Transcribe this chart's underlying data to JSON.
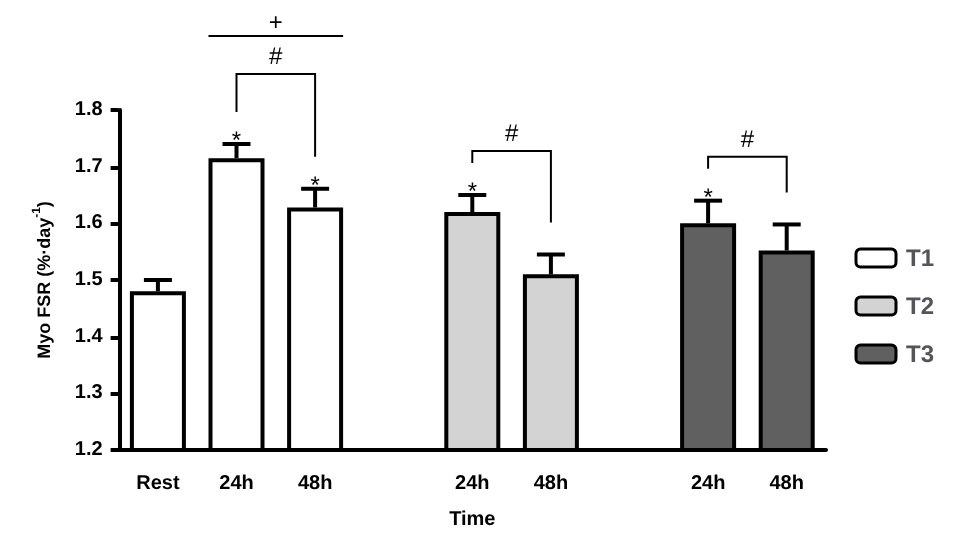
{
  "chart_data": {
    "type": "bar",
    "xlabel": "Time",
    "ylabel": "Myo FSR (%·day$^{-1}$)",
    "categories": [
      "Rest",
      "24h",
      "48h",
      null,
      "24h",
      "48h",
      null,
      "24h",
      "48h"
    ],
    "series": [
      {
        "name": "T1",
        "color": "#ffffff",
        "values": [
          1.48,
          1.715,
          1.628,
          null,
          null,
          null,
          null,
          null,
          null
        ],
        "errors": [
          0.02,
          0.025,
          0.033,
          null,
          null,
          null,
          null,
          null,
          null
        ]
      },
      {
        "name": "T2",
        "color": "#d3d3d3",
        "values": [
          null,
          null,
          null,
          null,
          1.62,
          1.51,
          null,
          null,
          null
        ],
        "errors": [
          null,
          null,
          null,
          null,
          0.03,
          0.035,
          null,
          null,
          null
        ]
      },
      {
        "name": "T3",
        "color": "#606060",
        "values": [
          null,
          null,
          null,
          null,
          null,
          null,
          null,
          1.6,
          1.552
        ],
        "errors": [
          null,
          null,
          null,
          null,
          null,
          null,
          null,
          0.04,
          0.046
        ]
      }
    ],
    "annotations": [
      "+",
      "#",
      "*",
      "*",
      "#",
      "*",
      "#",
      "*"
    ],
    "ylim": [
      1.2,
      1.8
    ],
    "yticks": [
      1.2,
      1.3,
      1.4,
      1.5,
      1.6,
      1.7,
      1.8
    ],
    "grid": false,
    "legend": "right"
  }
}
